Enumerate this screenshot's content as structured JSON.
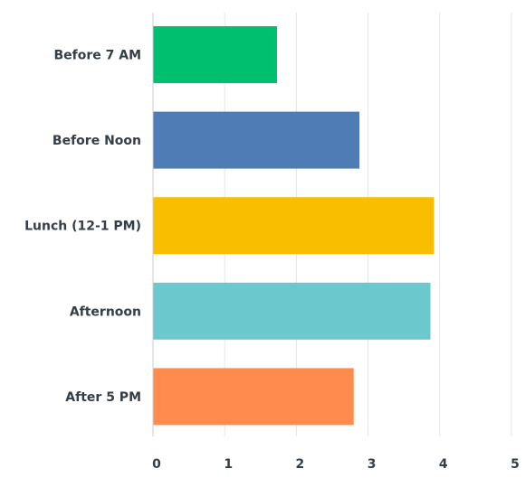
{
  "chart_data": {
    "type": "bar",
    "orientation": "horizontal",
    "title": "",
    "xlabel": "",
    "ylabel": "",
    "categories": [
      "Before 7 AM",
      "Before Noon",
      "Lunch (12-1 PM)",
      "Afternoon",
      "After 5 PM"
    ],
    "values": [
      1.73,
      2.88,
      3.92,
      3.87,
      2.8
    ],
    "colors": [
      "#00bf6f",
      "#507cb6",
      "#f9be00",
      "#6bc8cd",
      "#ff8b4f"
    ],
    "xlim": [
      0,
      5
    ],
    "xticks": [
      "0",
      "1",
      "2",
      "3",
      "4",
      "5"
    ],
    "grid": true,
    "legend": "none"
  }
}
